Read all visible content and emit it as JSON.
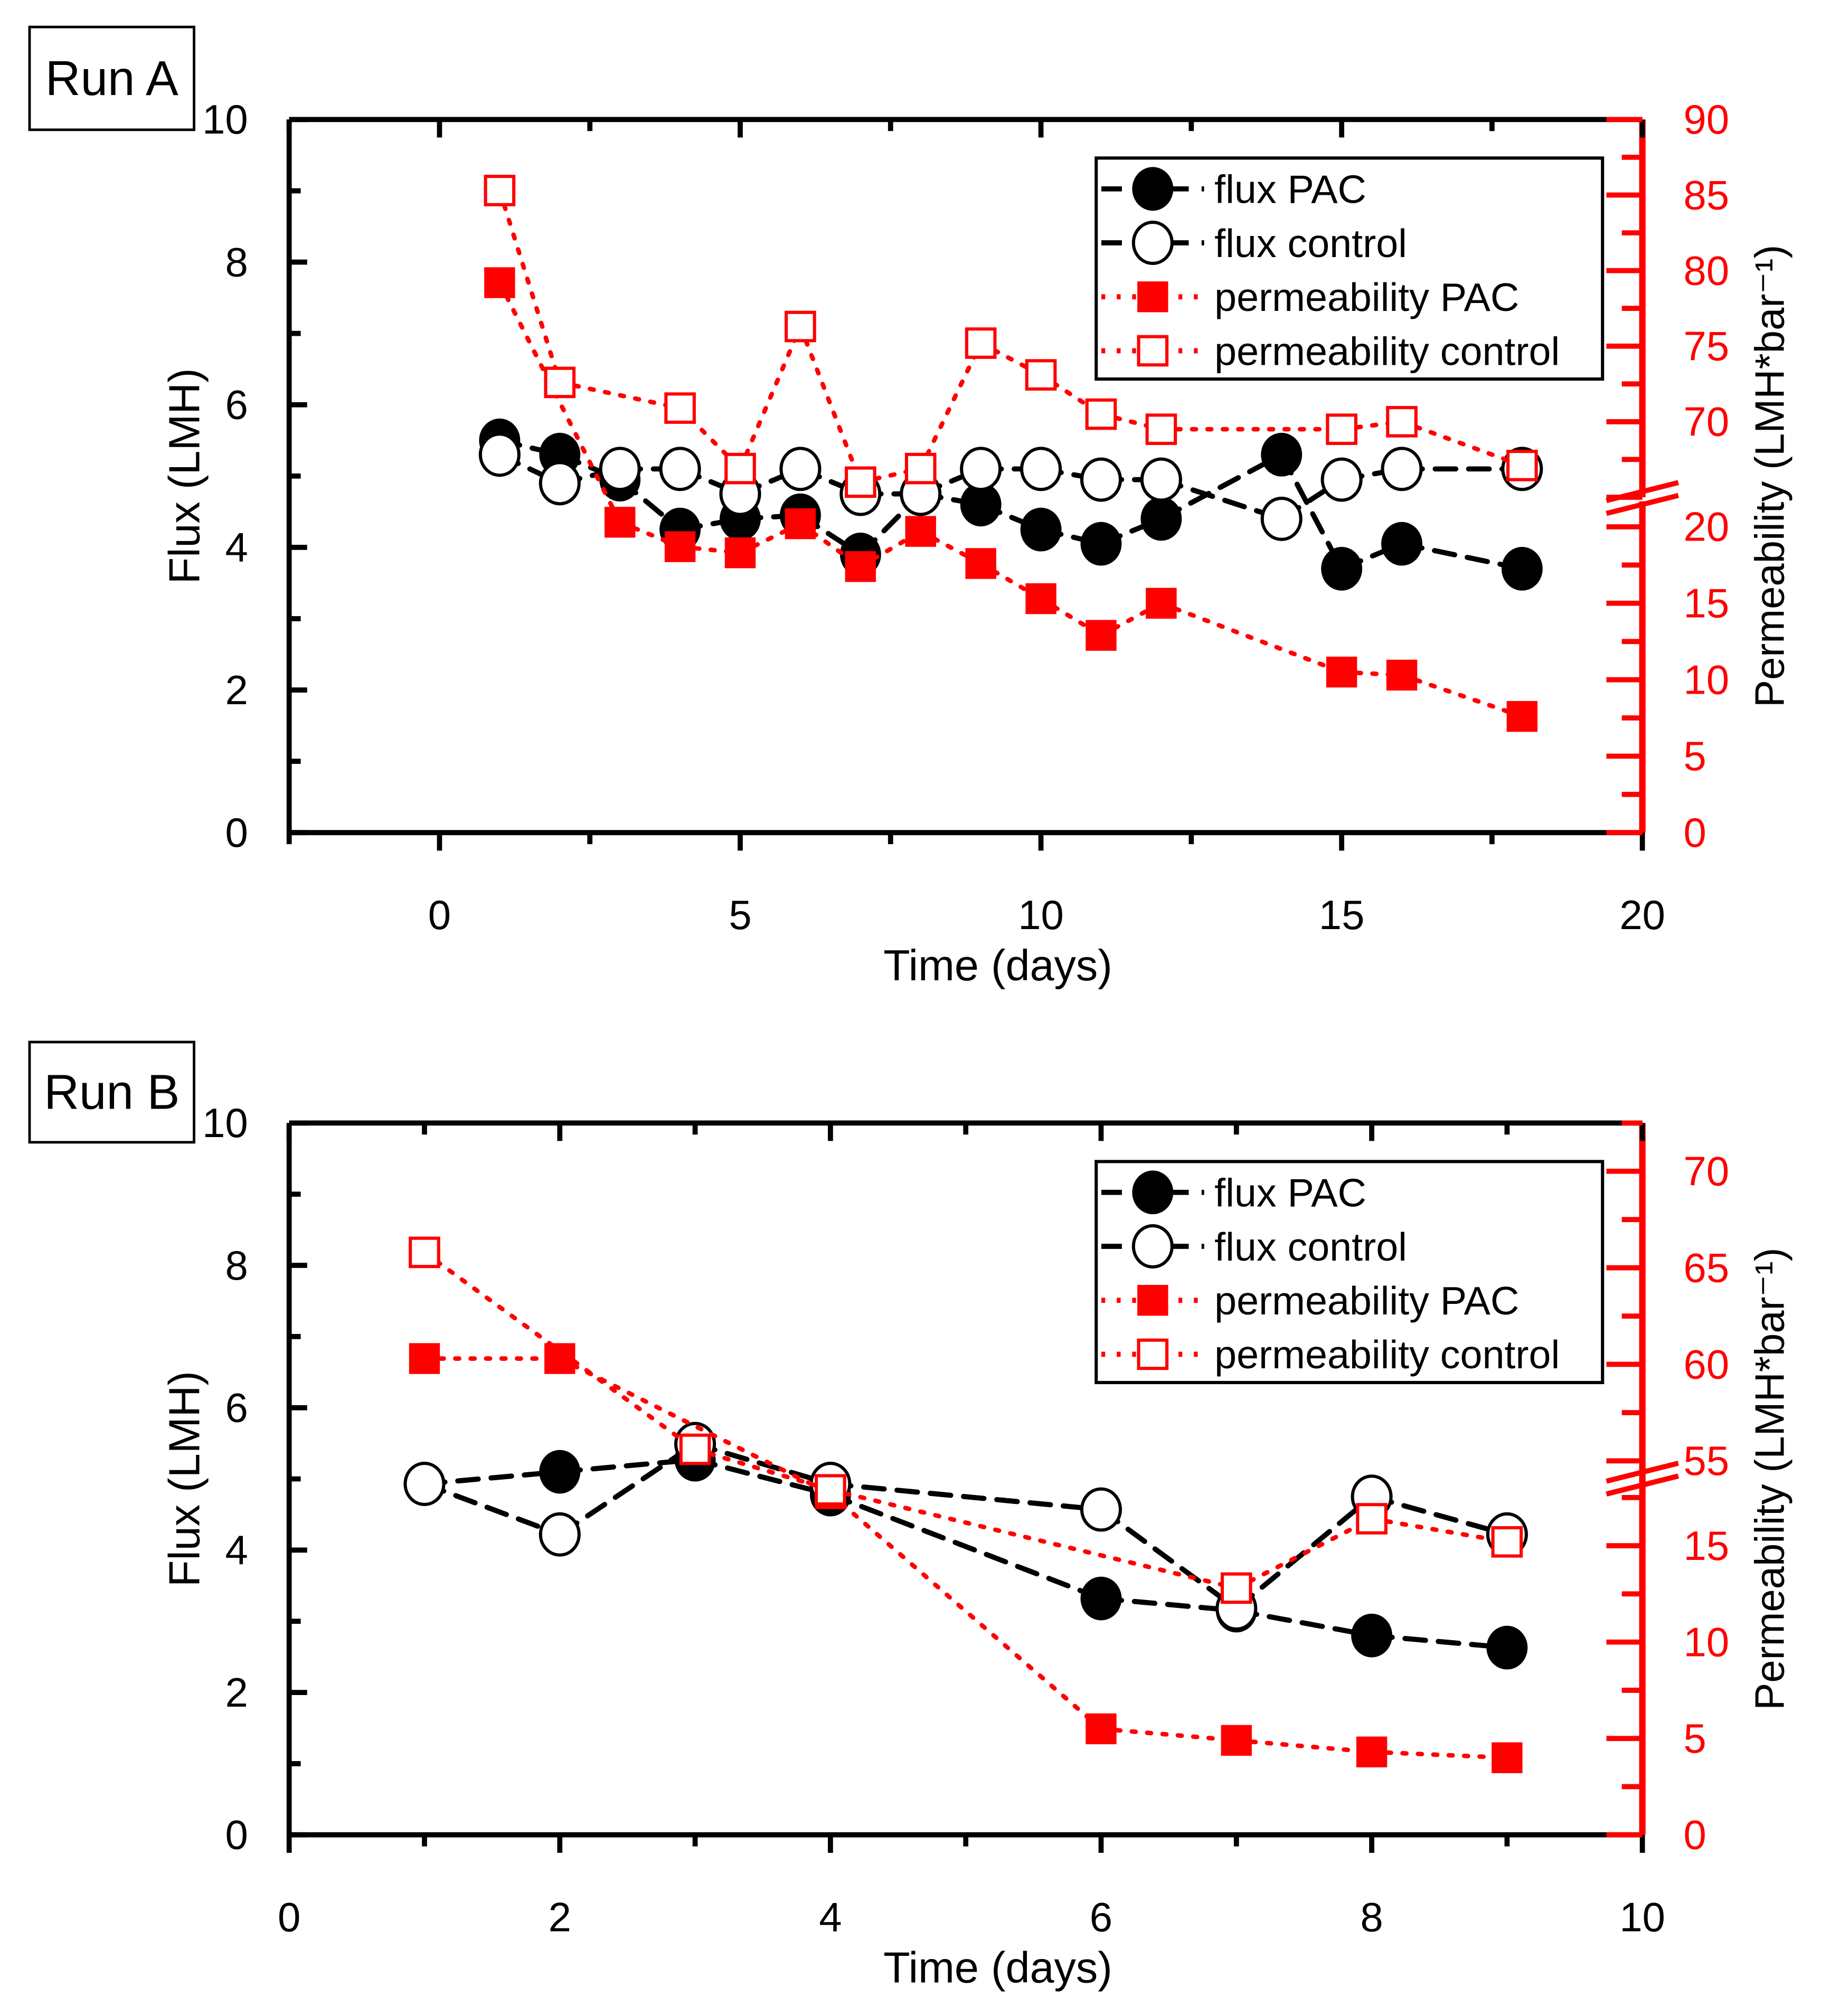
{
  "chart_data": [
    {
      "type": "line",
      "panel_label": "Run A",
      "xlabel": "Time (days)",
      "ylabel": "Flux (LMH)",
      "ylabel_right": "Permeability (LMH*bar⁻¹)",
      "xlim": [
        -2.5,
        20
      ],
      "xticks": [
        0,
        5,
        10,
        15,
        20
      ],
      "ylim": [
        0,
        10
      ],
      "yticks": [
        0,
        2,
        4,
        6,
        8,
        10
      ],
      "ylim_right_broken": {
        "lower": [
          0,
          21.5
        ],
        "upper": [
          65,
          90
        ]
      },
      "yticks_right": [
        0,
        5,
        10,
        15,
        20,
        70,
        75,
        80,
        85,
        90
      ],
      "legend_position": "top-right",
      "series": [
        {
          "name": "flux PAC",
          "axis": "left",
          "marker": "filled-circle",
          "color": "#000000",
          "line": "dashed",
          "x": [
            1,
            2,
            3,
            4,
            5,
            6,
            7,
            8,
            9,
            10,
            11,
            12,
            14,
            15,
            16,
            18
          ],
          "y": [
            5.5,
            5.3,
            4.95,
            4.25,
            4.4,
            4.45,
            3.9,
            4.75,
            4.6,
            4.25,
            4.05,
            4.4,
            5.3,
            3.7,
            4.05,
            3.7
          ]
        },
        {
          "name": "flux control",
          "axis": "left",
          "marker": "open-circle",
          "color": "#000000",
          "line": "dashed",
          "x": [
            1,
            2,
            3,
            4,
            5,
            6,
            7,
            8,
            9,
            10,
            11,
            12,
            14,
            15,
            16,
            18
          ],
          "y": [
            5.3,
            4.9,
            5.1,
            5.1,
            4.75,
            5.1,
            4.75,
            4.75,
            5.1,
            5.1,
            4.95,
            4.95,
            4.4,
            4.95,
            5.1,
            5.1
          ]
        },
        {
          "name": "permeability PAC",
          "axis": "right",
          "marker": "filled-square",
          "color": "#ff0000",
          "line": "dotted",
          "x": [
            1,
            3,
            4,
            5,
            6,
            7,
            8,
            9,
            10,
            11,
            12,
            15,
            16,
            18
          ],
          "y": [
            79.2,
            20.3,
            18.7,
            18.3,
            20.2,
            17.4,
            19.7,
            17.6,
            15.3,
            12.9,
            15.0,
            10.5,
            10.3,
            7.6
          ]
        },
        {
          "name": "permeability control",
          "axis": "right",
          "marker": "open-square",
          "color": "#ff0000",
          "line": "dotted",
          "x": [
            1,
            2,
            4,
            5,
            6,
            7,
            8,
            9,
            10,
            11,
            12,
            15,
            16,
            18
          ],
          "y": [
            85.3,
            72.6,
            70.9,
            66.9,
            76.3,
            66.0,
            66.9,
            75.2,
            73.1,
            70.5,
            69.5,
            69.5,
            70.0,
            67.1
          ]
        }
      ]
    },
    {
      "type": "line",
      "panel_label": "Run B",
      "xlabel": "Time (days)",
      "ylabel": "Flux (LMH)",
      "ylabel_right": "Permeability (LMH*bar⁻¹)",
      "xlim": [
        0,
        10
      ],
      "xticks": [
        0,
        2,
        4,
        6,
        8,
        10
      ],
      "ylim": [
        0,
        10
      ],
      "yticks": [
        0,
        2,
        4,
        6,
        8,
        10
      ],
      "ylim_right_broken": {
        "lower": [
          0,
          18.3
        ],
        "upper": [
          54,
          72.5
        ]
      },
      "yticks_right": [
        0,
        5,
        10,
        15,
        55,
        60,
        65,
        70
      ],
      "legend_position": "top-right",
      "series": [
        {
          "name": "flux PAC",
          "axis": "left",
          "marker": "filled-circle",
          "color": "#000000",
          "line": "dashed",
          "x": [
            1,
            2,
            3,
            4,
            6,
            7,
            8,
            9
          ],
          "y": [
            4.93,
            5.1,
            5.27,
            4.78,
            3.32,
            3.15,
            2.8,
            2.63
          ]
        },
        {
          "name": "flux control",
          "axis": "left",
          "marker": "open-circle",
          "color": "#000000",
          "line": "dashed",
          "x": [
            1,
            2,
            3,
            4,
            6,
            7,
            8,
            9
          ],
          "y": [
            4.93,
            4.22,
            5.49,
            4.93,
            4.57,
            3.18,
            4.75,
            4.22
          ]
        },
        {
          "name": "permeability PAC",
          "axis": "right",
          "marker": "filled-square",
          "color": "#ff0000",
          "line": "dotted",
          "x": [
            1,
            2,
            4,
            6,
            7,
            8,
            9
          ],
          "y": [
            60.3,
            60.3,
            17.7,
            5.5,
            4.9,
            4.3,
            4.0
          ]
        },
        {
          "name": "permeability control",
          "axis": "right",
          "marker": "open-square",
          "color": "#ff0000",
          "line": "dotted",
          "x": [
            1,
            3,
            4,
            7,
            8,
            9
          ],
          "y": [
            65.8,
            55.6,
            17.9,
            12.8,
            16.4,
            15.2
          ]
        }
      ]
    }
  ]
}
